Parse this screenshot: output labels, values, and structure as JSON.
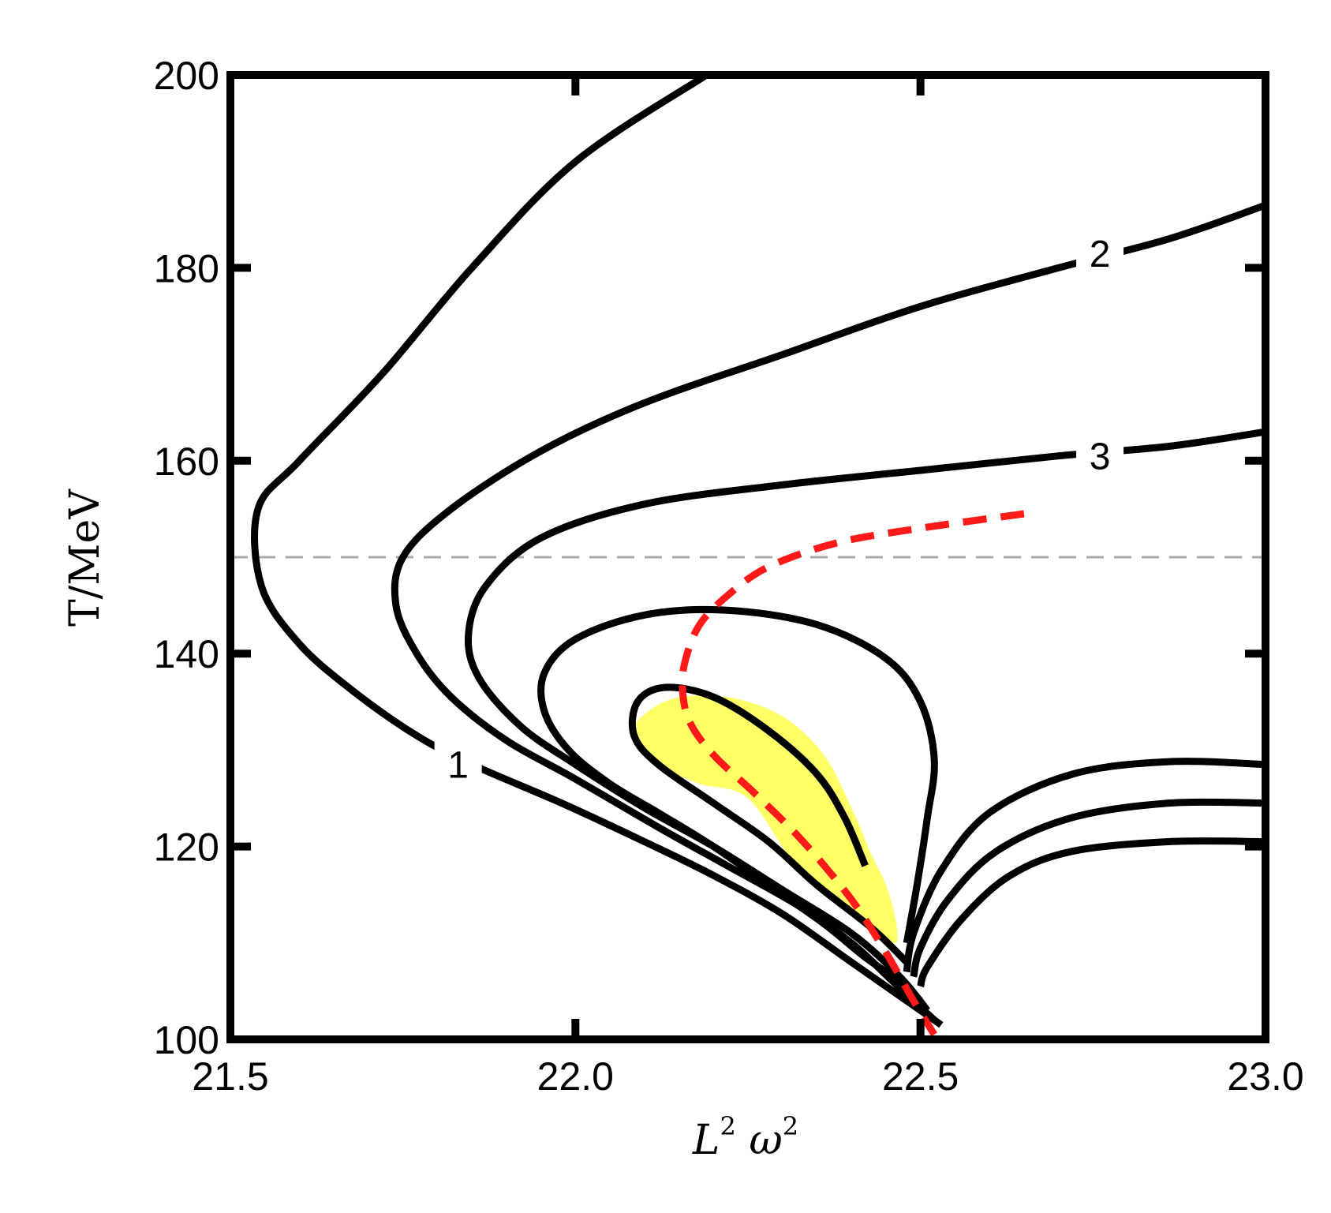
{
  "chart_data": {
    "type": "contour",
    "title": "",
    "xlabel_main": "L",
    "xlabel_sup1": "2",
    "xlabel_mid": " ω",
    "xlabel_sup2": "2",
    "ylabel": "T/MeV",
    "xlim": [
      21.5,
      23.0
    ],
    "ylim": [
      100,
      200
    ],
    "xticks": [
      21.5,
      22.0,
      22.5,
      23.0
    ],
    "xtick_labels": [
      "21.5",
      "22.0",
      "22.5",
      "23.0"
    ],
    "yticks": [
      100,
      120,
      140,
      160,
      180,
      200
    ],
    "ytick_labels": [
      "100",
      "120",
      "140",
      "160",
      "180",
      "200"
    ],
    "reference_line": {
      "y": 150,
      "style": "dashed",
      "color": "#aaaaaa"
    },
    "highlight_region_color": "#ffff66",
    "highlight_region": [
      [
        22.25,
        125.0
      ],
      [
        22.32,
        118.0
      ],
      [
        22.4,
        113.0
      ],
      [
        22.46,
        110.0
      ],
      [
        22.465,
        112.0
      ],
      [
        22.45,
        116.0
      ],
      [
        22.43,
        119.0
      ],
      [
        22.4,
        124.0
      ],
      [
        22.36,
        129.5
      ],
      [
        22.3,
        133.5
      ],
      [
        22.22,
        135.5
      ],
      [
        22.14,
        135.3
      ],
      [
        22.09,
        133.0
      ],
      [
        22.085,
        131.0
      ],
      [
        22.12,
        128.5
      ],
      [
        22.18,
        126.5
      ]
    ],
    "contours": [
      {
        "label": "1",
        "label_pos": [
          21.83,
          128.5
        ],
        "points": [
          [
            22.19,
            200.0
          ],
          [
            22.0,
            191.0
          ],
          [
            21.85,
            180.0
          ],
          [
            21.72,
            169.0
          ],
          [
            21.6,
            160.0
          ],
          [
            21.54,
            155.0
          ],
          [
            21.545,
            147.0
          ],
          [
            21.6,
            141.0
          ],
          [
            21.68,
            136.0
          ],
          [
            21.77,
            131.5
          ],
          [
            21.85,
            128.5
          ],
          [
            21.98,
            124.5
          ],
          [
            22.1,
            120.5
          ],
          [
            22.2,
            117.0
          ],
          [
            22.3,
            113.0
          ],
          [
            22.4,
            108.0
          ],
          [
            22.48,
            104.0
          ],
          [
            22.53,
            101.5
          ]
        ]
      },
      {
        "label": "2",
        "label_pos": [
          22.76,
          181.5
        ],
        "points": [
          [
            23.0,
            186.5
          ],
          [
            22.86,
            183.0
          ],
          [
            22.7,
            180.0
          ],
          [
            22.5,
            176.0
          ],
          [
            22.3,
            171.0
          ],
          [
            22.1,
            166.0
          ],
          [
            21.95,
            161.0
          ],
          [
            21.82,
            155.0
          ],
          [
            21.75,
            150.0
          ],
          [
            21.74,
            145.0
          ],
          [
            21.77,
            140.0
          ],
          [
            21.82,
            135.5
          ],
          [
            21.9,
            131.0
          ],
          [
            22.0,
            127.0
          ],
          [
            22.12,
            122.0
          ],
          [
            22.22,
            118.0
          ],
          [
            22.32,
            114.0
          ],
          [
            22.4,
            110.0
          ],
          [
            22.46,
            106.0
          ],
          [
            22.52,
            102.0
          ]
        ]
      },
      {
        "label": "3",
        "label_pos": [
          22.76,
          160.5
        ],
        "points": [
          [
            23.0,
            163.0
          ],
          [
            22.86,
            161.5
          ],
          [
            22.7,
            160.5
          ],
          [
            22.5,
            159.0
          ],
          [
            22.3,
            157.5
          ],
          [
            22.1,
            155.5
          ],
          [
            21.95,
            152.0
          ],
          [
            21.87,
            147.0
          ],
          [
            21.845,
            142.0
          ],
          [
            21.86,
            137.5
          ],
          [
            21.92,
            132.5
          ],
          [
            22.0,
            128.5
          ],
          [
            22.1,
            124.0
          ],
          [
            22.2,
            120.0
          ],
          [
            22.3,
            115.5
          ],
          [
            22.4,
            111.0
          ],
          [
            22.47,
            106.5
          ],
          [
            22.51,
            103.0
          ]
        ]
      },
      {
        "label": "",
        "points": [
          [
            22.48,
            110.0
          ],
          [
            22.495,
            116.0
          ],
          [
            22.51,
            123.0
          ],
          [
            22.52,
            129.0
          ],
          [
            22.5,
            135.0
          ],
          [
            22.45,
            139.5
          ],
          [
            22.35,
            143.0
          ],
          [
            22.22,
            144.5
          ],
          [
            22.1,
            144.0
          ],
          [
            22.0,
            141.5
          ],
          [
            21.955,
            138.0
          ],
          [
            21.955,
            134.0
          ],
          [
            21.99,
            130.0
          ],
          [
            22.05,
            126.5
          ],
          [
            22.12,
            123.5
          ],
          [
            22.2,
            120.0
          ],
          [
            22.28,
            116.0
          ],
          [
            22.36,
            112.0
          ],
          [
            22.42,
            108.5
          ],
          [
            22.47,
            106.0
          ],
          [
            22.5,
            104.0
          ]
        ]
      },
      {
        "label": "",
        "points": [
          [
            22.42,
            118.0
          ],
          [
            22.39,
            123.0
          ],
          [
            22.35,
            127.5
          ],
          [
            22.28,
            132.0
          ],
          [
            22.2,
            135.5
          ],
          [
            22.13,
            136.5
          ],
          [
            22.09,
            135.0
          ],
          [
            22.085,
            131.5
          ],
          [
            22.12,
            128.5
          ],
          [
            22.2,
            124.5
          ],
          [
            22.28,
            120.5
          ],
          [
            22.35,
            116.0
          ],
          [
            22.43,
            111.5
          ],
          [
            22.48,
            108.0
          ]
        ]
      },
      {
        "label": "",
        "points": [
          [
            23.0,
            128.5
          ],
          [
            22.86,
            128.8
          ],
          [
            22.72,
            127.5
          ],
          [
            22.6,
            123.5
          ],
          [
            22.53,
            117.5
          ],
          [
            22.49,
            111.0
          ],
          [
            22.48,
            107.0
          ]
        ]
      },
      {
        "label": "",
        "points": [
          [
            23.0,
            124.5
          ],
          [
            22.86,
            124.5
          ],
          [
            22.72,
            123.0
          ],
          [
            22.61,
            119.5
          ],
          [
            22.54,
            114.5
          ],
          [
            22.5,
            109.5
          ],
          [
            22.49,
            106.5
          ]
        ]
      },
      {
        "label": "",
        "points": [
          [
            23.0,
            120.5
          ],
          [
            22.86,
            120.5
          ],
          [
            22.72,
            119.5
          ],
          [
            22.63,
            117.0
          ],
          [
            22.56,
            112.5
          ],
          [
            22.51,
            107.5
          ],
          [
            22.5,
            105.5
          ]
        ]
      }
    ],
    "dashed_curve": {
      "color": "#ff1a1a",
      "points": [
        [
          22.65,
          154.5
        ],
        [
          22.5,
          153.0
        ],
        [
          22.38,
          151.5
        ],
        [
          22.28,
          149.0
        ],
        [
          22.22,
          146.0
        ],
        [
          22.18,
          143.0
        ],
        [
          22.16,
          139.5
        ],
        [
          22.155,
          136.5
        ],
        [
          22.165,
          133.0
        ],
        [
          22.2,
          129.5
        ],
        [
          22.26,
          125.5
        ],
        [
          22.33,
          120.5
        ],
        [
          22.4,
          114.5
        ],
        [
          22.45,
          109.0
        ],
        [
          22.49,
          104.0
        ],
        [
          22.52,
          100.5
        ]
      ]
    }
  }
}
